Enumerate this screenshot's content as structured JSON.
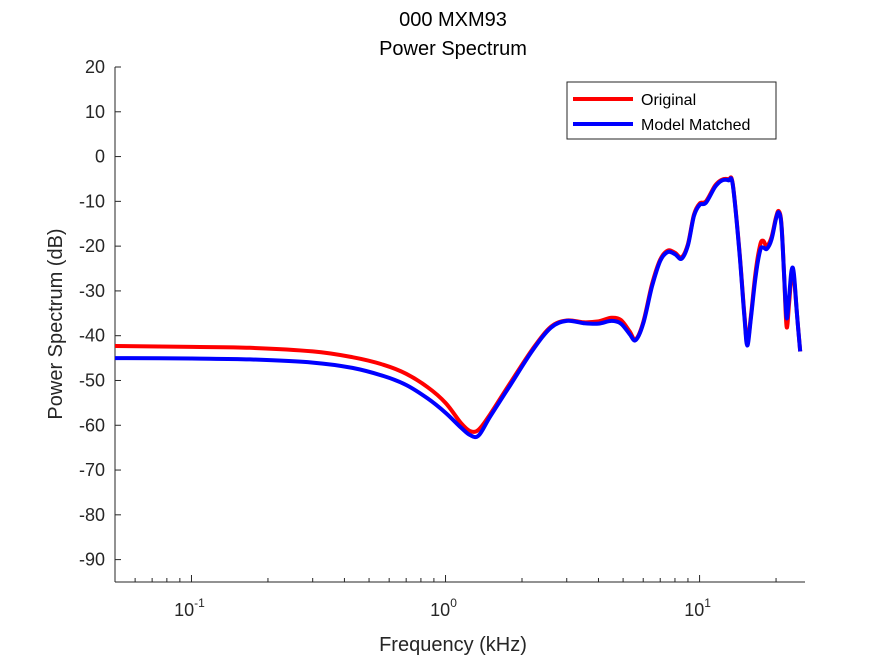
{
  "chart_data": {
    "type": "line",
    "title": "000 MXM93",
    "subtitle": "Power Spectrum",
    "xlabel": "Frequency (kHz)",
    "ylabel": "Power Spectrum (dB)",
    "xscale": "log",
    "xlim": [
      0.05,
      26
    ],
    "ylim": [
      -95,
      20
    ],
    "yticks": [
      20,
      10,
      0,
      -10,
      -20,
      -30,
      -40,
      -50,
      -60,
      -70,
      -80,
      -90
    ],
    "ytick_labels": [
      "20",
      "10",
      "0",
      "-10",
      "-20",
      "-30",
      "-40",
      "-50",
      "-60",
      "-70",
      "-80",
      "-90"
    ],
    "xticks": [
      {
        "value": 0.1,
        "base": "10",
        "exp": "-1"
      },
      {
        "value": 1,
        "base": "10",
        "exp": "0"
      },
      {
        "value": 10,
        "base": "10",
        "exp": "1"
      }
    ],
    "grid": false,
    "legend_position": "top-right",
    "series": [
      {
        "name": "Original",
        "color": "#ff0000",
        "points": [
          [
            0.05,
            -42.3
          ],
          [
            0.1,
            -42.5
          ],
          [
            0.17,
            -42.7
          ],
          [
            0.3,
            -43.5
          ],
          [
            0.43,
            -44.8
          ],
          [
            0.57,
            -46.5
          ],
          [
            0.7,
            -48.5
          ],
          [
            0.85,
            -51.5
          ],
          [
            1.0,
            -55.0
          ],
          [
            1.15,
            -59.5
          ],
          [
            1.25,
            -61.3
          ],
          [
            1.35,
            -61.0
          ],
          [
            1.5,
            -57.5
          ],
          [
            1.8,
            -50.5
          ],
          [
            2.2,
            -43.0
          ],
          [
            2.6,
            -38.0
          ],
          [
            3.0,
            -36.6
          ],
          [
            3.5,
            -37.0
          ],
          [
            4.0,
            -36.8
          ],
          [
            4.5,
            -36.0
          ],
          [
            4.9,
            -36.5
          ],
          [
            5.3,
            -39.0
          ],
          [
            5.6,
            -40.8
          ],
          [
            6.0,
            -37.0
          ],
          [
            6.5,
            -28.5
          ],
          [
            7.0,
            -23.0
          ],
          [
            7.5,
            -21.0
          ],
          [
            8.0,
            -21.5
          ],
          [
            8.5,
            -22.5
          ],
          [
            9.0,
            -19.5
          ],
          [
            9.5,
            -13.0
          ],
          [
            10.0,
            -10.5
          ],
          [
            10.6,
            -10.0
          ],
          [
            11.5,
            -6.5
          ],
          [
            12.2,
            -5.2
          ],
          [
            13.0,
            -5.1
          ],
          [
            13.5,
            -6.0
          ],
          [
            14.3,
            -20.0
          ],
          [
            15.0,
            -35.0
          ],
          [
            15.4,
            -41.5
          ],
          [
            15.9,
            -36.0
          ],
          [
            16.6,
            -26.0
          ],
          [
            17.3,
            -19.8
          ],
          [
            17.8,
            -18.8
          ],
          [
            18.4,
            -20.0
          ],
          [
            19.2,
            -18.0
          ],
          [
            20.0,
            -13.5
          ],
          [
            20.5,
            -12.2
          ],
          [
            21.0,
            -15.0
          ],
          [
            21.5,
            -26.0
          ],
          [
            22.0,
            -38.0
          ],
          [
            22.5,
            -33.0
          ],
          [
            23.0,
            -26.5
          ],
          [
            23.5,
            -26.8
          ],
          [
            24.2,
            -35.5
          ],
          [
            24.9,
            -43.5
          ]
        ]
      },
      {
        "name": "Model Matched",
        "color": "#0000ff",
        "points": [
          [
            0.05,
            -45.0
          ],
          [
            0.1,
            -45.1
          ],
          [
            0.17,
            -45.3
          ],
          [
            0.3,
            -46.0
          ],
          [
            0.43,
            -47.2
          ],
          [
            0.57,
            -49.0
          ],
          [
            0.7,
            -51.0
          ],
          [
            0.85,
            -54.0
          ],
          [
            1.0,
            -57.2
          ],
          [
            1.15,
            -60.5
          ],
          [
            1.25,
            -62.2
          ],
          [
            1.35,
            -62.3
          ],
          [
            1.5,
            -58.0
          ],
          [
            1.8,
            -51.0
          ],
          [
            2.2,
            -43.3
          ],
          [
            2.6,
            -38.2
          ],
          [
            3.0,
            -36.7
          ],
          [
            3.5,
            -37.2
          ],
          [
            4.0,
            -37.3
          ],
          [
            4.5,
            -36.7
          ],
          [
            4.9,
            -37.3
          ],
          [
            5.3,
            -39.6
          ],
          [
            5.6,
            -41.0
          ],
          [
            6.0,
            -37.3
          ],
          [
            6.5,
            -29.0
          ],
          [
            7.0,
            -23.3
          ],
          [
            7.5,
            -21.3
          ],
          [
            8.0,
            -21.8
          ],
          [
            8.5,
            -22.8
          ],
          [
            9.0,
            -19.8
          ],
          [
            9.5,
            -13.3
          ],
          [
            10.0,
            -10.8
          ],
          [
            10.6,
            -10.3
          ],
          [
            11.5,
            -6.8
          ],
          [
            12.2,
            -5.4
          ],
          [
            13.0,
            -5.3
          ],
          [
            13.5,
            -6.2
          ],
          [
            14.3,
            -20.3
          ],
          [
            15.0,
            -35.5
          ],
          [
            15.4,
            -42.2
          ],
          [
            15.9,
            -36.5
          ],
          [
            16.6,
            -27.0
          ],
          [
            17.3,
            -21.0
          ],
          [
            17.8,
            -20.3
          ],
          [
            18.4,
            -20.6
          ],
          [
            19.2,
            -18.5
          ],
          [
            20.0,
            -13.8
          ],
          [
            20.5,
            -12.5
          ],
          [
            21.0,
            -15.3
          ],
          [
            21.5,
            -26.0
          ],
          [
            22.0,
            -36.0
          ],
          [
            22.5,
            -31.5
          ],
          [
            23.0,
            -25.5
          ],
          [
            23.5,
            -26.0
          ],
          [
            24.2,
            -35.5
          ],
          [
            24.9,
            -43.5
          ]
        ]
      }
    ]
  }
}
